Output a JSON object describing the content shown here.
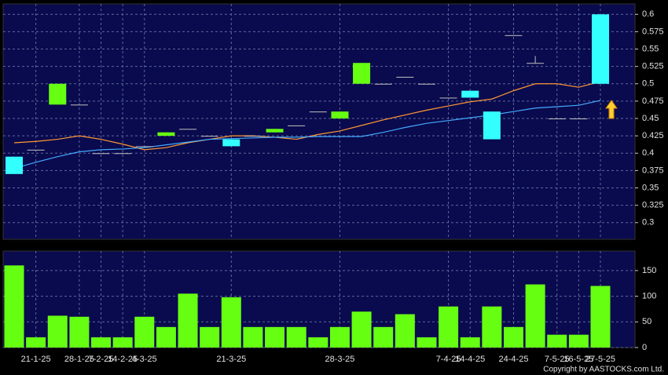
{
  "chart_data": [
    {
      "type": "candlestick",
      "categories": [
        null,
        "21-1-25",
        null,
        "28-1-25",
        "7-2-25",
        "14-2-25",
        "4-3-25",
        null,
        null,
        null,
        "21-3-25",
        null,
        null,
        null,
        null,
        "28-3-25",
        null,
        null,
        null,
        null,
        "7-4-25",
        "14-4-25",
        null,
        "24-4-25",
        null,
        "7-5-25",
        "16-5-25",
        "27-5-25"
      ],
      "open": [
        0.37,
        0.405,
        0.5,
        0.47,
        0.4,
        0.4,
        0.41,
        0.43,
        0.435,
        0.425,
        0.41,
        0.425,
        0.435,
        0.44,
        0.46,
        0.46,
        0.53,
        0.5,
        0.51,
        0.5,
        0.48,
        0.48,
        0.42,
        0.57,
        0.53,
        0.45,
        0.45,
        0.5
      ],
      "high": [
        0.395,
        0.405,
        0.5,
        0.47,
        0.4,
        0.4,
        0.41,
        0.43,
        0.435,
        0.425,
        0.42,
        0.425,
        0.435,
        0.44,
        0.46,
        0.46,
        0.53,
        0.5,
        0.51,
        0.5,
        0.48,
        0.49,
        0.46,
        0.57,
        0.54,
        0.45,
        0.45,
        0.6
      ],
      "low": [
        0.37,
        0.405,
        0.47,
        0.47,
        0.4,
        0.4,
        0.41,
        0.425,
        0.435,
        0.425,
        0.41,
        0.425,
        0.43,
        0.44,
        0.46,
        0.45,
        0.5,
        0.5,
        0.51,
        0.5,
        0.48,
        0.48,
        0.42,
        0.57,
        0.53,
        0.45,
        0.45,
        0.5
      ],
      "close": [
        0.395,
        0.405,
        0.47,
        0.47,
        0.4,
        0.4,
        0.41,
        0.425,
        0.435,
        0.425,
        0.42,
        0.425,
        0.43,
        0.44,
        0.46,
        0.45,
        0.5,
        0.5,
        0.51,
        0.5,
        0.48,
        0.49,
        0.46,
        0.57,
        0.53,
        0.45,
        0.45,
        0.6
      ],
      "up_color": "#33ffff",
      "down_color": "#66ff11",
      "series": [
        {
          "color": "#ff9933",
          "values": [
            0.415,
            0.417,
            0.42,
            0.425,
            0.42,
            0.413,
            0.405,
            0.408,
            0.415,
            0.42,
            0.425,
            0.425,
            0.423,
            0.42,
            0.427,
            0.432,
            0.44,
            0.448,
            0.455,
            0.462,
            0.468,
            0.474,
            0.478,
            0.49,
            0.5,
            0.5,
            0.495,
            0.503
          ]
        },
        {
          "color": "#44aaff",
          "values": [
            0.378,
            0.387,
            0.395,
            0.402,
            0.405,
            0.406,
            0.408,
            0.412,
            0.416,
            0.42,
            0.421,
            0.422,
            0.423,
            0.423,
            0.424,
            0.424,
            0.424,
            0.43,
            0.437,
            0.443,
            0.447,
            0.451,
            0.455,
            0.46,
            0.465,
            0.467,
            0.469,
            0.476
          ]
        }
      ],
      "ylim": [
        0.276,
        0.615
      ],
      "yticks": [
        0.3,
        0.325,
        0.35,
        0.375,
        0.4,
        0.425,
        0.45,
        0.475,
        0.5,
        0.525,
        0.55,
        0.575,
        0.6
      ],
      "grid": true
    },
    {
      "type": "bar",
      "values": [
        160,
        20,
        62,
        60,
        20,
        20,
        60,
        40,
        105,
        40,
        98,
        40,
        40,
        40,
        20,
        40,
        70,
        40,
        65,
        20,
        80,
        20,
        80,
        40,
        123,
        25,
        25,
        120
      ],
      "color": "#66ff11",
      "ylim": [
        0,
        188
      ],
      "yticks": [
        0,
        50,
        100,
        150
      ],
      "grid": true
    }
  ],
  "copyright": "Copyright by AASTOCKS.com Ltd."
}
